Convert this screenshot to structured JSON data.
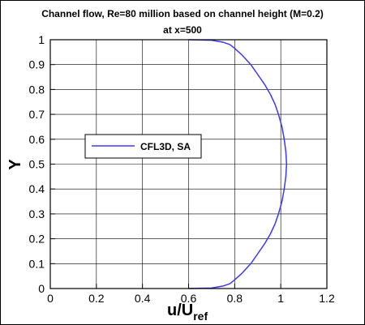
{
  "chart_data": {
    "type": "line",
    "title": "Channel flow, Re=80 million based on channel height (M=0.2)",
    "subtitle": "at x=500",
    "xlabel_main": "u/U",
    "xlabel_sub": "ref",
    "ylabel": "Y",
    "xlim": [
      0,
      1.2
    ],
    "ylim": [
      0,
      1
    ],
    "xticks": [
      "0",
      "0.2",
      "0.4",
      "0.6",
      "0.8",
      "1",
      "1.2"
    ],
    "yticks": [
      "0",
      "0.1",
      "0.2",
      "0.3",
      "0.4",
      "0.5",
      "0.6",
      "0.7",
      "0.8",
      "0.9",
      "1"
    ],
    "grid": true,
    "legend_position": "center-left",
    "series": [
      {
        "name": "CFL3D, SA",
        "color": "#3a3af0",
        "x": [
          0.6,
          0.7,
          0.75,
          0.78,
          0.8,
          0.83,
          0.87,
          0.9,
          0.93,
          0.955,
          0.975,
          0.99,
          1.005,
          1.015,
          1.022,
          1.025,
          1.022,
          1.015,
          1.005,
          0.99,
          0.975,
          0.955,
          0.93,
          0.9,
          0.87,
          0.83,
          0.8,
          0.78,
          0.75,
          0.7,
          0.6
        ],
        "y": [
          0.0,
          0.002,
          0.01,
          0.02,
          0.035,
          0.06,
          0.1,
          0.14,
          0.18,
          0.22,
          0.26,
          0.3,
          0.35,
          0.4,
          0.45,
          0.5,
          0.55,
          0.6,
          0.65,
          0.7,
          0.74,
          0.78,
          0.82,
          0.86,
          0.9,
          0.94,
          0.965,
          0.98,
          0.99,
          0.998,
          1.0
        ]
      }
    ]
  }
}
